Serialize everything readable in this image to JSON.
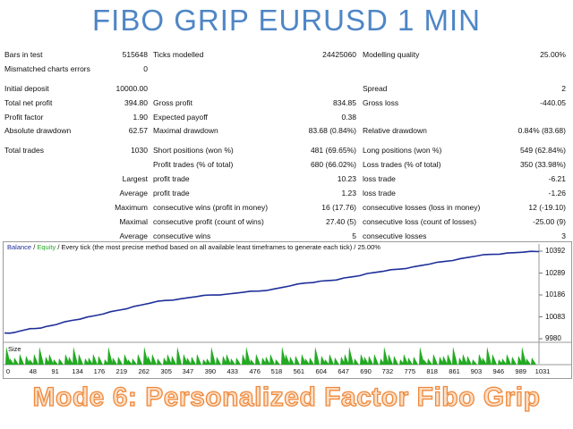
{
  "header": {
    "title": "FIBO GRIP EURUSD 1 MIN"
  },
  "report": {
    "bars_in_test": {
      "label": "Bars in test",
      "value": "515648"
    },
    "ticks_modelled": {
      "label": "Ticks modelled",
      "value": "24425060"
    },
    "modelling_quality": {
      "label": "Modelling quality",
      "value": "25.00%"
    },
    "mismatched": {
      "label": "Mismatched charts errors",
      "value": "0"
    },
    "initial_deposit": {
      "label": "Initial deposit",
      "value": "10000.00"
    },
    "spread": {
      "label": "Spread",
      "value": "2"
    },
    "total_net_profit": {
      "label": "Total net profit",
      "value": "394.80"
    },
    "gross_profit": {
      "label": "Gross profit",
      "value": "834.85"
    },
    "gross_loss": {
      "label": "Gross loss",
      "value": "-440.05"
    },
    "profit_factor": {
      "label": "Profit factor",
      "value": "1.90"
    },
    "expected_payoff": {
      "label": "Expected payoff",
      "value": "0.38"
    },
    "absolute_drawdown": {
      "label": "Absolute drawdown",
      "value": "62.57"
    },
    "maximal_drawdown": {
      "label": "Maximal drawdown",
      "value": "83.68 (0.84%)"
    },
    "relative_drawdown": {
      "label": "Relative drawdown",
      "value": "0.84% (83.68)"
    },
    "total_trades": {
      "label": "Total trades",
      "value": "1030"
    },
    "short_positions": {
      "label": "Short positions (won %)",
      "value": "481 (69.65%)"
    },
    "long_positions": {
      "label": "Long positions (won %)",
      "value": "549 (62.84%)"
    },
    "profit_trades": {
      "label": "Profit trades (% of total)",
      "value": "680 (66.02%)"
    },
    "loss_trades": {
      "label": "Loss trades (% of total)",
      "value": "350 (33.98%)"
    },
    "largest_label": "Largest",
    "largest_profit": {
      "label": "profit trade",
      "value": "10.23"
    },
    "largest_loss": {
      "label": "loss trade",
      "value": "-6.21"
    },
    "average_label": "Average",
    "average_profit": {
      "label": "profit trade",
      "value": "1.23"
    },
    "average_loss": {
      "label": "loss trade",
      "value": "-1.26"
    },
    "maximum_label": "Maximum",
    "max_cons_wins": {
      "label": "consecutive wins (profit in money)",
      "value": "16 (17.76)"
    },
    "max_cons_losses": {
      "label": "consecutive losses (loss in money)",
      "value": "12 (-19.10)"
    },
    "maximal_label": "Maximal",
    "maximal_cons_profit": {
      "label": "consecutive profit (count of wins)",
      "value": "27.40 (5)"
    },
    "maximal_cons_loss": {
      "label": "consecutive loss (count of losses)",
      "value": "-25.00 (9)"
    },
    "average2_label": "Average",
    "avg_cons_wins": {
      "label": "consecutive wins",
      "value": "5"
    },
    "avg_cons_losses": {
      "label": "consecutive losses",
      "value": "3"
    }
  },
  "chart": {
    "legend_balance": "Balance",
    "legend_sep1": " / ",
    "legend_equity": "Equity",
    "legend_rest": " / Every tick (the most precise method based on all available least timeframes to generate each tick) / 25.00%",
    "size_label": "Size",
    "colors": {
      "balance": "#1f2f9a",
      "equity": "#22aa22",
      "size_bars": "#22aa22"
    }
  },
  "chart_data": {
    "type": "line",
    "title": "",
    "xlabel": "",
    "ylabel": "",
    "x_ticks": [
      "0",
      "48",
      "91",
      "134",
      "176",
      "219",
      "262",
      "305",
      "347",
      "390",
      "433",
      "476",
      "518",
      "561",
      "604",
      "647",
      "690",
      "732",
      "775",
      "818",
      "861",
      "903",
      "946",
      "989",
      "1031"
    ],
    "y_ticks": [
      "10392",
      "10289",
      "10186",
      "10083",
      "9980"
    ],
    "ylim": [
      9980,
      10392
    ],
    "xlim": [
      0,
      1031
    ],
    "series": [
      {
        "name": "Balance",
        "x": [
          0,
          20,
          40,
          60,
          80,
          100,
          130,
          160,
          190,
          220,
          250,
          280,
          310,
          340,
          370,
          400,
          430,
          460,
          490,
          520,
          550,
          580,
          610,
          640,
          670,
          700,
          730,
          760,
          790,
          820,
          850,
          880,
          910,
          940,
          970,
          1000,
          1031
        ],
        "y": [
          10007,
          10010,
          10022,
          10028,
          10037,
          10047,
          10066,
          10082,
          10096,
          10114,
          10132,
          10147,
          10160,
          10168,
          10178,
          10186,
          10190,
          10198,
          10204,
          10214,
          10228,
          10242,
          10251,
          10256,
          10271,
          10287,
          10297,
          10307,
          10319,
          10331,
          10344,
          10357,
          10369,
          10377,
          10383,
          10387,
          10390
        ]
      }
    ],
    "size_panel": {
      "label": "Size",
      "note": "trade lot size histogram"
    }
  },
  "footer": {
    "caption": "Mode 6: Personalized Factor Fibo Grip"
  }
}
